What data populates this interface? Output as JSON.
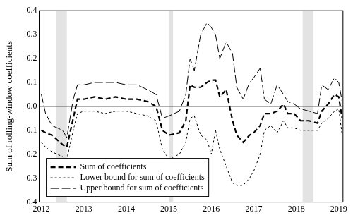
{
  "chart_data": {
    "type": "line",
    "y_label": "Sum of rolling-window coefficients",
    "x": [
      2012.0,
      2012.1,
      2012.25,
      2012.5,
      2012.6,
      2012.75,
      2012.85,
      2013.0,
      2013.25,
      2013.5,
      2013.75,
      2014.0,
      2014.25,
      2014.5,
      2014.7,
      2014.85,
      2015.0,
      2015.25,
      2015.4,
      2015.5,
      2015.6,
      2015.75,
      2015.9,
      2016.0,
      2016.1,
      2016.2,
      2016.35,
      2016.5,
      2016.6,
      2016.75,
      2016.9,
      2017.0,
      2017.15,
      2017.25,
      2017.4,
      2017.55,
      2017.7,
      2017.8,
      2017.95,
      2018.1,
      2018.3,
      2018.5,
      2018.6,
      2018.75,
      2018.9,
      2019.0,
      2019.08
    ],
    "series": [
      {
        "name": "Sum of coefficients",
        "color": "#000000",
        "line_style": "dashed",
        "values": [
          -0.1,
          -0.11,
          -0.12,
          -0.16,
          -0.17,
          -0.05,
          0.03,
          0.03,
          0.04,
          0.03,
          0.04,
          0.03,
          0.03,
          0.02,
          0.0,
          -0.1,
          -0.12,
          -0.11,
          -0.06,
          0.09,
          0.08,
          0.08,
          0.1,
          0.11,
          0.11,
          0.04,
          0.07,
          -0.06,
          -0.12,
          -0.15,
          -0.12,
          -0.11,
          -0.08,
          -0.03,
          -0.03,
          -0.02,
          0.01,
          -0.03,
          -0.03,
          -0.06,
          -0.06,
          -0.07,
          -0.02,
          0.01,
          0.05,
          0.04,
          -0.05
        ]
      },
      {
        "name": "Lower bound for sum of coefficients",
        "color": "#000000",
        "line_style": "short-dashed",
        "values": [
          -0.15,
          -0.17,
          -0.19,
          -0.21,
          -0.22,
          -0.1,
          -0.03,
          -0.02,
          -0.02,
          -0.03,
          -0.02,
          -0.02,
          -0.03,
          -0.04,
          -0.06,
          -0.18,
          -0.22,
          -0.2,
          -0.15,
          -0.05,
          -0.04,
          -0.12,
          -0.14,
          -0.2,
          -0.1,
          -0.18,
          -0.25,
          -0.32,
          -0.33,
          -0.33,
          -0.3,
          -0.27,
          -0.2,
          -0.1,
          -0.08,
          -0.11,
          -0.06,
          -0.09,
          -0.09,
          -0.1,
          -0.1,
          -0.1,
          -0.07,
          -0.05,
          -0.02,
          -0.01,
          -0.12
        ]
      },
      {
        "name": "Upper bound for sum of coefficients",
        "color": "#000000",
        "line_style": "long-dashed",
        "values": [
          0.05,
          -0.03,
          -0.08,
          -0.1,
          -0.13,
          0.03,
          0.09,
          0.09,
          0.1,
          0.1,
          0.1,
          0.09,
          0.09,
          0.07,
          0.05,
          -0.05,
          -0.04,
          -0.02,
          0.05,
          0.2,
          0.15,
          0.3,
          0.35,
          0.33,
          0.3,
          0.2,
          0.27,
          0.22,
          0.08,
          0.03,
          0.1,
          0.12,
          0.16,
          0.03,
          0.01,
          0.09,
          0.05,
          0.02,
          0.01,
          -0.01,
          -0.02,
          -0.03,
          0.09,
          0.07,
          0.12,
          0.1,
          0.02
        ]
      }
    ],
    "shaded_regions": [
      [
        2012.35,
        2012.6
      ],
      [
        2015.0,
        2015.1
      ],
      [
        2018.15,
        2018.4
      ]
    ],
    "hline": 0,
    "xlim": [
      2011.95,
      2019.1
    ],
    "xticks": [
      2012,
      2013,
      2014,
      2015,
      2016,
      2017,
      2018,
      2019
    ],
    "ylim": [
      -0.4,
      0.4
    ],
    "yticks": [
      -0.4,
      -0.3,
      -0.2,
      -0.1,
      {
        "value": 0,
        "label": "0.0"
      },
      0.1,
      0.2,
      0.3,
      0.4
    ],
    "grid": false,
    "legend": "lower left"
  }
}
